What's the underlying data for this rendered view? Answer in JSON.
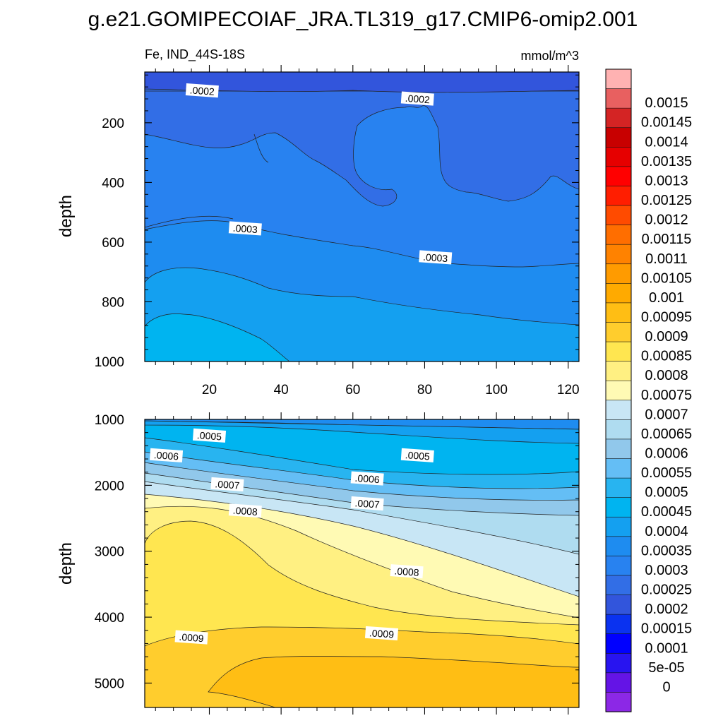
{
  "title": "g.e21.GOMIPECOIAF_JRA.TL319_g17.CMIP6-omip2.001",
  "chart_data": {
    "type": "contour",
    "variable_label": "Fe, IND_44S-18S",
    "units": "mmol/m^3",
    "x_ticks": [
      "20",
      "40",
      "60",
      "80",
      "100",
      "120"
    ],
    "x_range": [
      2,
      123
    ],
    "panels": [
      {
        "name": "upper",
        "ylabel": "depth",
        "y_range": [
          30,
          1000
        ],
        "y_ticks": [
          "200",
          "400",
          "600",
          "800",
          "1000"
        ],
        "contour_labels": [
          {
            "text": ".0002",
            "x": 18,
            "y": 93
          },
          {
            "text": ".0002",
            "x": 78,
            "y": 120
          },
          {
            "text": ".0003",
            "x": 30,
            "y": 555
          },
          {
            "text": ".0003",
            "x": 83,
            "y": 652
          }
        ]
      },
      {
        "name": "lower",
        "ylabel": "depth",
        "y_range": [
          1000,
          5370
        ],
        "y_ticks": [
          "1000",
          "2000",
          "3000",
          "4000",
          "5000"
        ],
        "contour_labels": [
          {
            "text": ".0005",
            "x": 20,
            "y": 1250
          },
          {
            "text": ".0006",
            "x": 8,
            "y": 1550
          },
          {
            "text": ".0007",
            "x": 25,
            "y": 1990
          },
          {
            "text": ".0008",
            "x": 30,
            "y": 2390
          },
          {
            "text": ".0005",
            "x": 78,
            "y": 1550
          },
          {
            "text": ".0006",
            "x": 64,
            "y": 1900
          },
          {
            "text": ".0007",
            "x": 64,
            "y": 2280
          },
          {
            "text": ".0008",
            "x": 75,
            "y": 3310
          },
          {
            "text": ".0009",
            "x": 15,
            "y": 4310
          },
          {
            "text": ".0009",
            "x": 68,
            "y": 4250
          }
        ]
      }
    ],
    "colorbar": {
      "labels": [
        "0.0015",
        "0.00145",
        "0.0014",
        "0.00135",
        "0.0013",
        "0.00125",
        "0.0012",
        "0.00115",
        "0.0011",
        "0.00105",
        "0.001",
        "0.00095",
        "0.0009",
        "0.00085",
        "0.0008",
        "0.00075",
        "0.0007",
        "0.00065",
        "0.0006",
        "0.00055",
        "0.0005",
        "0.00045",
        "0.0004",
        "0.00035",
        "0.0003",
        "0.00025",
        "0.0002",
        "0.00015",
        "0.0001",
        "5e-05",
        "0"
      ],
      "colors": [
        "#ffb2b2",
        "#e86060",
        "#d42424",
        "#c80000",
        "#e60000",
        "#ff0000",
        "#ff1e00",
        "#ff4b00",
        "#ff6e00",
        "#ff8200",
        "#ff9b00",
        "#ffaa00",
        "#ffbe14",
        "#ffcd2d",
        "#ffe650",
        "#fff082",
        "#fffab4",
        "#c8e6f5",
        "#afdcf0",
        "#91c8eb",
        "#64bef5",
        "#28b4f0",
        "#00b4f0",
        "#14a0f0",
        "#1e8cf0",
        "#2882f0",
        "#326ee6",
        "#3255dc",
        "#0a32f0",
        "#0000ff",
        "#2814f0",
        "#6414e6",
        "#8c28e6"
      ]
    }
  }
}
